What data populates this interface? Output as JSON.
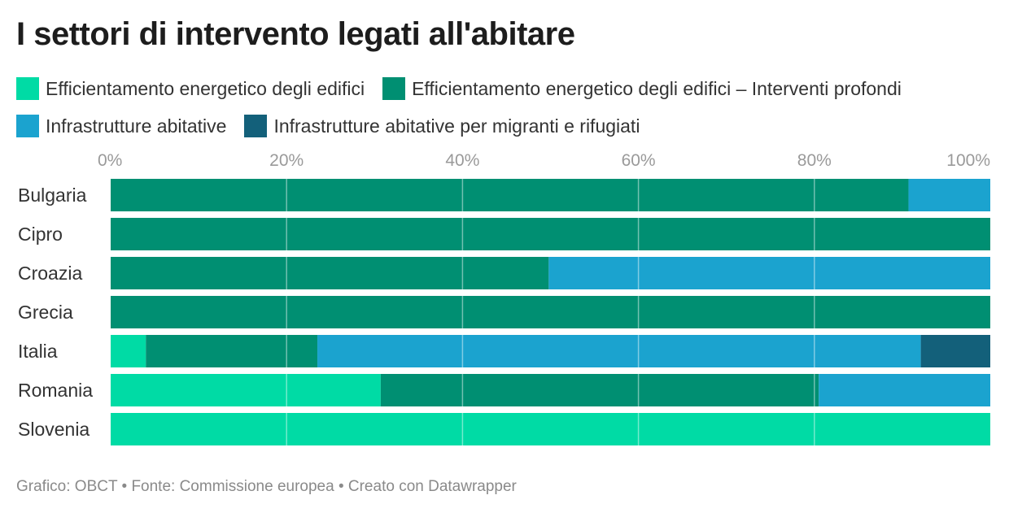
{
  "title": "I settori di intervento legati all'abitare",
  "footer": "Grafico: OBCT • Fonte: Commissione europea • Creato con Datawrapper",
  "chart_data": {
    "type": "bar",
    "orientation": "horizontal",
    "stacked": true,
    "normalized": true,
    "title": "I settori di intervento legati all'abitare",
    "categories": [
      "Bulgaria",
      "Cipro",
      "Croazia",
      "Grecia",
      "Italia",
      "Romania",
      "Slovenia"
    ],
    "xlim": [
      0,
      100
    ],
    "xticks": [
      "0%",
      "20%",
      "40%",
      "60%",
      "80%",
      "100%"
    ],
    "grid": true,
    "legend_position": "top",
    "series": [
      {
        "name": "Efficientamento energetico degli edifici",
        "color": "#00dba5",
        "values": [
          0,
          0,
          0,
          0,
          4,
          30.7,
          100
        ]
      },
      {
        "name": "Efficientamento energetico degli edifici – Interventi profondi",
        "color": "#008f72",
        "values": [
          90.7,
          100,
          49.8,
          100,
          19.5,
          49.8,
          0
        ]
      },
      {
        "name": "Infrastrutture abitative",
        "color": "#1ba3cf",
        "values": [
          9.3,
          0,
          50.2,
          0,
          68.6,
          19.5,
          0
        ]
      },
      {
        "name": "Infrastrutture abitative per migranti e rifugiati",
        "color": "#13607a",
        "values": [
          0,
          0,
          0,
          0,
          7.9,
          0,
          0
        ]
      }
    ]
  }
}
